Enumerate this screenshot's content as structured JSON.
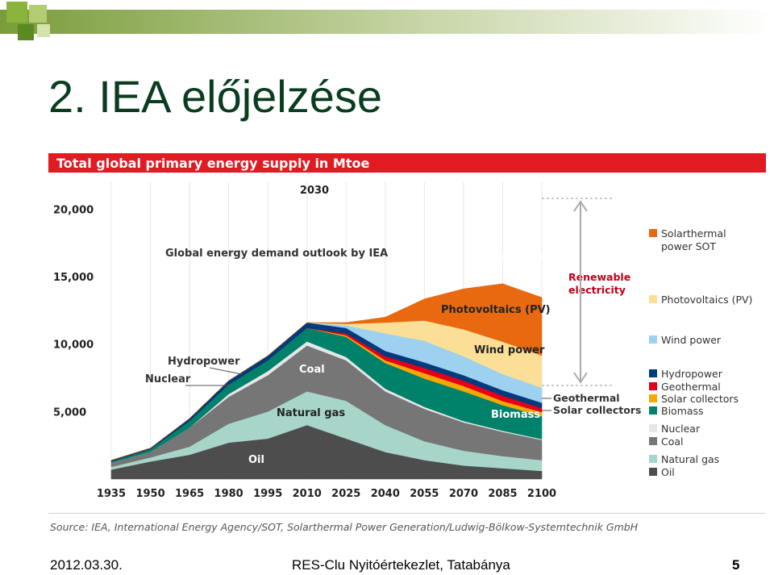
{
  "slide": {
    "title": "2. IEA előjelzése",
    "footer_date": "2012.03.30.",
    "footer_event": "RES-Clu Nyitóértekezlet, Tatabánya",
    "page_number": "5"
  },
  "source": "Source: IEA, International Energy Agency/SOT, Solarthermal Power Generation/Ludwig-Bölkow-Systemtechnik GmbH",
  "chart_data": {
    "type": "area",
    "title": "Total global primary energy supply in Mtoe",
    "year_marker": "2030",
    "x": [
      1935,
      1950,
      1965,
      1980,
      1995,
      2010,
      2025,
      2040,
      2055,
      2070,
      2085,
      2100
    ],
    "x_tick_labels": [
      "1935",
      "1950",
      "1965",
      "1980",
      "1995",
      "2010",
      "2025",
      "2040",
      "2055",
      "2070",
      "2085",
      "2100"
    ],
    "ylim": [
      0,
      22000
    ],
    "y_ticks": [
      5000,
      10000,
      15000,
      20000
    ],
    "y_tick_labels": [
      "5,000",
      "10,000",
      "15,000",
      "20,000"
    ],
    "grid": true,
    "legend_position": "right",
    "series": [
      {
        "name": "Oil",
        "color": "#4d4d4d",
        "values": [
          700,
          1300,
          1800,
          2700,
          3000,
          4000,
          3000,
          2000,
          1400,
          1000,
          800,
          600
        ]
      },
      {
        "name": "Natural gas",
        "color": "#a7d5c9",
        "values": [
          200,
          300,
          600,
          1400,
          2000,
          2500,
          2800,
          2000,
          1400,
          1100,
          900,
          800
        ]
      },
      {
        "name": "Coal",
        "color": "#767676",
        "values": [
          300,
          400,
          1400,
          2000,
          2700,
          3400,
          3000,
          2500,
          2400,
          2100,
          1800,
          1500
        ]
      },
      {
        "name": "Nuclear",
        "color": "#e6e6e6",
        "values": [
          0,
          0,
          0,
          200,
          300,
          300,
          250,
          200,
          150,
          100,
          80,
          60
        ]
      },
      {
        "name": "Biomass",
        "color": "#00826a",
        "values": [
          100,
          200,
          500,
          700,
          800,
          1000,
          1500,
          1900,
          2100,
          2200,
          1900,
          1700
        ]
      },
      {
        "name": "Solar collectors",
        "color": "#f6a800",
        "values": [
          0,
          0,
          0,
          0,
          0,
          0,
          100,
          200,
          400,
          400,
          300,
          300
        ]
      },
      {
        "name": "Geothermal",
        "color": "#e2001a",
        "values": [
          0,
          0,
          0,
          0,
          0,
          0,
          150,
          300,
          400,
          400,
          400,
          300
        ]
      },
      {
        "name": "Hydropower",
        "color": "#003b7d",
        "values": [
          100,
          100,
          200,
          300,
          350,
          400,
          400,
          400,
          400,
          400,
          400,
          400
        ]
      },
      {
        "name": "Wind power",
        "color": "#9ed1ef",
        "values": [
          0,
          0,
          0,
          0,
          0,
          0,
          200,
          1300,
          1600,
          1400,
          1200,
          1100
        ]
      },
      {
        "name": "Photovoltaics (PV)",
        "color": "#fcdf96",
        "values": [
          0,
          0,
          0,
          0,
          0,
          0,
          100,
          800,
          1500,
          2000,
          2400,
          2400
        ]
      },
      {
        "name": "Solarthermal power (SOT)",
        "color": "#e8690f",
        "values": [
          0,
          0,
          0,
          0,
          0,
          0,
          100,
          400,
          1600,
          3000,
          4300,
          4300
        ]
      }
    ],
    "annotations": [
      "Global energy demand outlook by IEA",
      "Hydropower",
      "Nuclear",
      "Coal",
      "Natural gas",
      "Oil",
      "Solarthermal power (SOT)",
      "Photovoltaics (PV)",
      "Wind power",
      "Biomass",
      "Renewable electricity",
      "Geothermal",
      "Solar collectors"
    ],
    "legend": [
      {
        "label": "Solarthermal power SOT",
        "color": "#e8690f"
      },
      {
        "label": "Photovoltaics (PV)",
        "color": "#fcdf96"
      },
      {
        "label": "Wind power",
        "color": "#9ed1ef"
      },
      {
        "label": "Hydropower",
        "color": "#003b7d"
      },
      {
        "label": "Geothermal",
        "color": "#e2001a"
      },
      {
        "label": "Solar collectors",
        "color": "#f6a800"
      },
      {
        "label": "Biomass",
        "color": "#00826a"
      },
      {
        "label": "Nuclear",
        "color": "#e6e6e6"
      },
      {
        "label": "Coal",
        "color": "#767676"
      },
      {
        "label": "Natural gas",
        "color": "#a7d5c9"
      },
      {
        "label": "Oil",
        "color": "#4d4d4d"
      }
    ]
  }
}
